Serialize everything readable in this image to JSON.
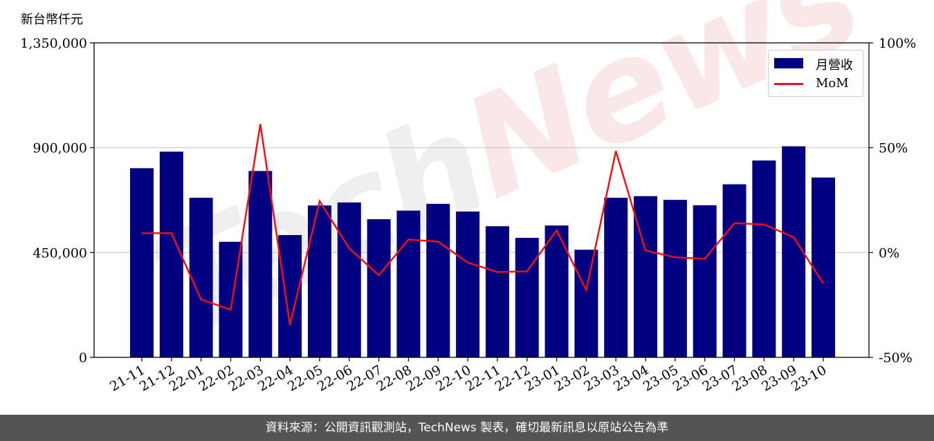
{
  "chart_data": {
    "type": "bar",
    "unit_label": "新台幣仟元",
    "categories": [
      "21-11",
      "21-12",
      "22-01",
      "22-02",
      "22-03",
      "22-04",
      "22-05",
      "22-06",
      "22-07",
      "22-08",
      "22-09",
      "22-10",
      "22-11",
      "22-12",
      "23-01",
      "23-02",
      "23-03",
      "23-04",
      "23-05",
      "23-06",
      "23-07",
      "23-08",
      "23-09",
      "23-10"
    ],
    "series": [
      {
        "name": "月營收",
        "type": "bar",
        "axis": "left",
        "color": "#000080",
        "values": [
          812000,
          883000,
          685000,
          496000,
          800000,
          525000,
          652000,
          665000,
          593000,
          630000,
          659000,
          626000,
          563000,
          513000,
          566000,
          462000,
          685000,
          692000,
          676000,
          653000,
          743000,
          845000,
          906000,
          772000
        ]
      },
      {
        "name": "MoM",
        "type": "line",
        "axis": "right",
        "color": "#ee1111",
        "values": [
          9.2,
          9.2,
          -22.4,
          -27.3,
          61.3,
          -34.5,
          24.5,
          2.0,
          -10.8,
          6.2,
          5.2,
          -4.8,
          -9.3,
          -9.0,
          10.6,
          -18.0,
          48.4,
          1.0,
          -2.3,
          -3.0,
          14.0,
          13.4,
          7.3,
          -14.8
        ]
      }
    ],
    "y_left": {
      "min": 0,
      "max": 1350000,
      "ticks": [
        "0",
        "450,000",
        "900,000",
        "1,350,000"
      ],
      "tick_values": [
        0,
        450000,
        900000,
        1350000
      ]
    },
    "y_right": {
      "min": -50,
      "max": 100,
      "ticks": [
        "-50%",
        "0%",
        "50%",
        "100%"
      ],
      "tick_values": [
        -50,
        0,
        50,
        100
      ]
    },
    "grid": true,
    "legend": "top-right"
  },
  "watermark": {
    "text_a": "Tech",
    "text_b": "News"
  },
  "footer": {
    "text": "資料來源：公開資訊觀測站，TechNews 製表，確切最新訊息以原站公告為準"
  }
}
